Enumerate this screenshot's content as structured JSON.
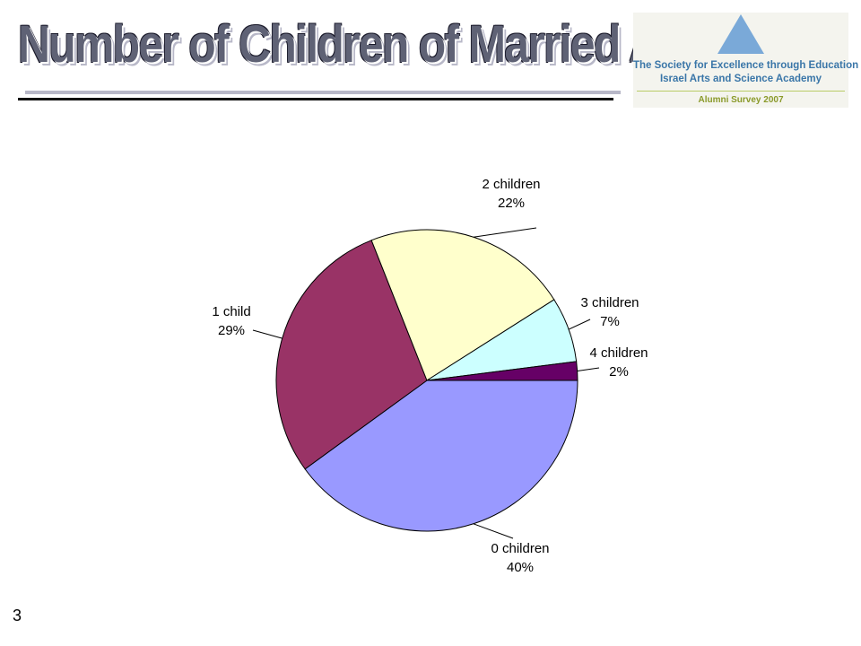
{
  "title": "Number of Children of Married Alumni",
  "logo": {
    "line1": "The Society for Excellence through Education",
    "line2": "Israel Arts and Science Academy",
    "line3": "Alumni Survey 2007"
  },
  "page_number": "3",
  "chart_data": {
    "type": "pie",
    "title": "",
    "slices": [
      {
        "label": "0 children",
        "value": 40,
        "value_label": "40%",
        "color": "#9999ff"
      },
      {
        "label": "1 child",
        "value": 29,
        "value_label": "29%",
        "color": "#993366"
      },
      {
        "label": "2 children",
        "value": 22,
        "value_label": "22%",
        "color": "#ffffcc"
      },
      {
        "label": "3 children",
        "value": 7,
        "value_label": "7%",
        "color": "#ccffff"
      },
      {
        "label": "4 children",
        "value": 2,
        "value_label": "2%",
        "color": "#660066"
      }
    ],
    "legend": "none",
    "label_style": "outside-with-leader-lines"
  }
}
